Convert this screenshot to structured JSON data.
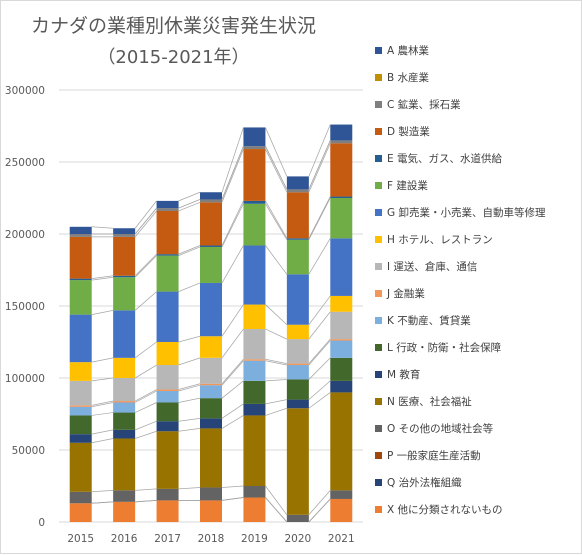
{
  "chart_data": {
    "type": "bar",
    "title": "カナダの業種別休業災害発生状況",
    "subtitle": "（2015-2021年）",
    "categories": [
      "2015",
      "2016",
      "2017",
      "2018",
      "2019",
      "2020",
      "2021"
    ],
    "ylim": [
      0,
      300000
    ],
    "yticks": [
      0,
      50000,
      100000,
      150000,
      200000,
      250000,
      300000
    ],
    "grid": true,
    "legend_position": "right",
    "series": [
      {
        "name": "X 他に分類されないもの",
        "color": "#ed7d31",
        "values": [
          13000,
          14000,
          15000,
          15000,
          17000,
          0,
          16000
        ]
      },
      {
        "name": "Q 治外法権組織",
        "color": "#264478",
        "values": [
          0,
          0,
          0,
          0,
          0,
          0,
          0
        ]
      },
      {
        "name": "P 一般家庭生産活動",
        "color": "#9e480e",
        "values": [
          0,
          0,
          0,
          0,
          0,
          0,
          0
        ]
      },
      {
        "name": "O その他の地域社会等",
        "color": "#636363",
        "values": [
          8000,
          8000,
          8000,
          9000,
          8000,
          5000,
          6000
        ]
      },
      {
        "name": "N 医療、社会福祉",
        "color": "#997300",
        "values": [
          34000,
          36000,
          40000,
          41000,
          49000,
          74000,
          68000
        ]
      },
      {
        "name": "M 教育",
        "color": "#264478",
        "values": [
          6000,
          6000,
          7000,
          7000,
          8000,
          6000,
          8000
        ]
      },
      {
        "name": "L 行政・防衛・社会保障",
        "color": "#43682b",
        "values": [
          13000,
          12000,
          13000,
          14000,
          16000,
          14000,
          16000
        ]
      },
      {
        "name": "K 不動産、賃貸業",
        "color": "#7cafdd",
        "values": [
          6000,
          7000,
          8000,
          9000,
          14000,
          10000,
          12000
        ]
      },
      {
        "name": "J 金融業",
        "color": "#f1975a",
        "values": [
          1000,
          1000,
          1000,
          1000,
          1000,
          1000,
          1000
        ]
      },
      {
        "name": "I 運送、倉庫、通信",
        "color": "#b7b7b7",
        "values": [
          17000,
          16000,
          17000,
          18000,
          21000,
          17000,
          19000
        ]
      },
      {
        "name": "H ホテル、レストラン",
        "color": "#ffc000",
        "values": [
          13000,
          14000,
          16000,
          15000,
          17000,
          10000,
          11000
        ]
      },
      {
        "name": "G 卸売業・小売業、自動車等修理",
        "color": "#4472c4",
        "values": [
          33000,
          33000,
          35000,
          37000,
          41000,
          35000,
          40000
        ]
      },
      {
        "name": "F 建設業",
        "color": "#70ad47",
        "values": [
          24000,
          23000,
          25000,
          25000,
          29000,
          24000,
          28000
        ]
      },
      {
        "name": "E 電気、ガス、水道供給",
        "color": "#255e91",
        "values": [
          1000,
          1000,
          1000,
          1000,
          2000,
          1000,
          1000
        ]
      },
      {
        "name": "D 製造業",
        "color": "#c55a11",
        "values": [
          29000,
          27000,
          30000,
          30000,
          36000,
          32000,
          37000
        ]
      },
      {
        "name": "C 鉱業、採石業",
        "color": "#7f7f7f",
        "values": [
          2000,
          2000,
          2000,
          2000,
          2000,
          2000,
          2000
        ]
      },
      {
        "name": "B 水産業",
        "color": "#bf9000",
        "values": [
          0,
          0,
          0,
          0,
          0,
          0,
          0
        ]
      },
      {
        "name": "A 農林業",
        "color": "#2f5597",
        "values": [
          5000,
          4000,
          5000,
          5000,
          13000,
          9000,
          11000
        ]
      }
    ]
  }
}
